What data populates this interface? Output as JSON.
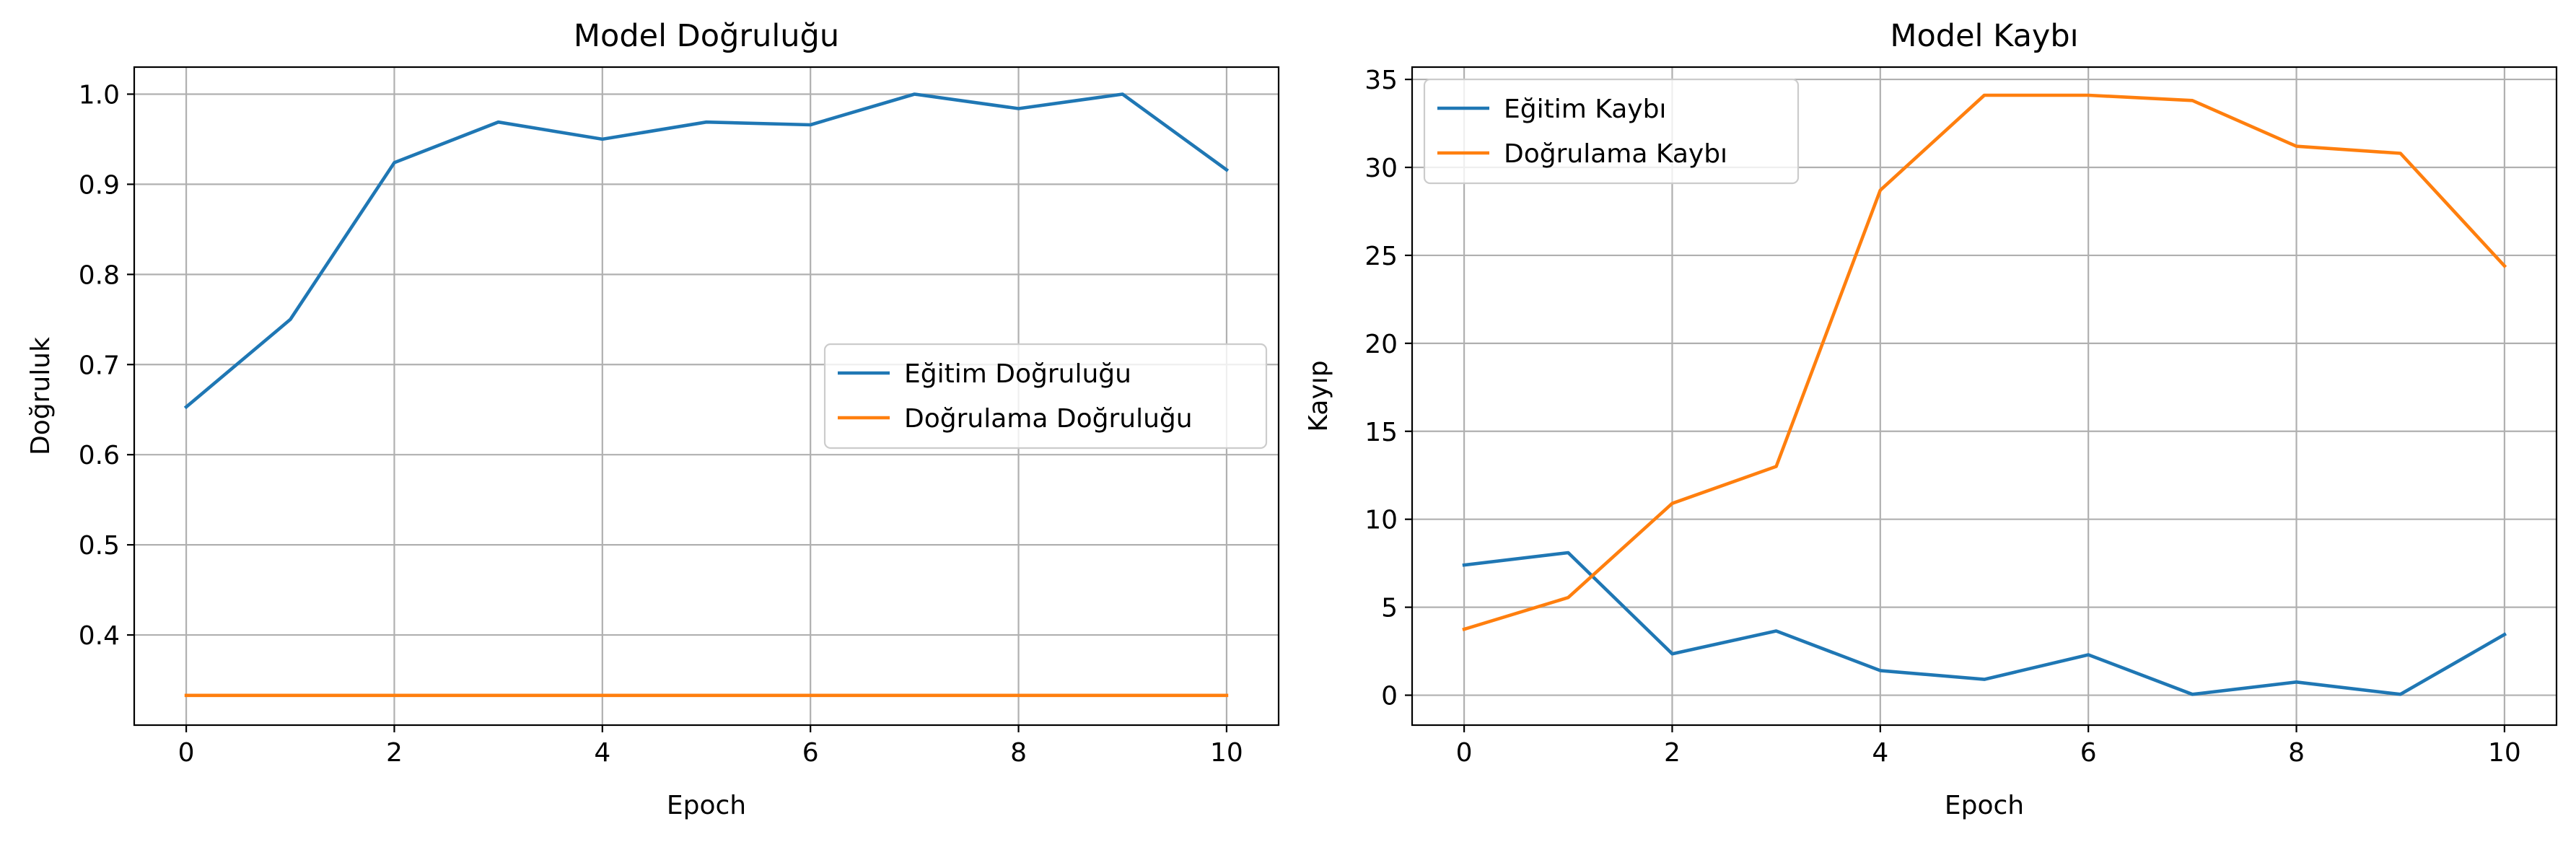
{
  "chart_data": [
    {
      "type": "line",
      "title": "Model Doğruluğu",
      "xlabel": "Epoch",
      "ylabel": "Doğruluk",
      "x": [
        0,
        1,
        2,
        3,
        4,
        5,
        6,
        7,
        8,
        9,
        10
      ],
      "xlim": [
        -0.5,
        10.5
      ],
      "ylim": [
        0.3,
        1.03
      ],
      "xticks": [
        0,
        2,
        4,
        6,
        8,
        10
      ],
      "yticks": [
        0.4,
        0.5,
        0.6,
        0.7,
        0.8,
        0.9,
        1.0
      ],
      "ytick_labels": [
        "0.4",
        "0.5",
        "0.6",
        "0.7",
        "0.8",
        "0.9",
        "1.0"
      ],
      "grid": true,
      "legend_position": "center-right",
      "series": [
        {
          "name": "Eğitim Doğruluğu",
          "color": "#1f77b4",
          "values": [
            0.653,
            0.75,
            0.924,
            0.969,
            0.95,
            0.969,
            0.966,
            1.0,
            0.984,
            1.0,
            0.916
          ]
        },
        {
          "name": "Doğrulama Doğruluğu",
          "color": "#ff7f0e",
          "values": [
            0.333,
            0.333,
            0.333,
            0.333,
            0.333,
            0.333,
            0.333,
            0.333,
            0.333,
            0.333,
            0.333
          ]
        }
      ]
    },
    {
      "type": "line",
      "title": "Model Kaybı",
      "xlabel": "Epoch",
      "ylabel": "Kayıp",
      "x": [
        0,
        1,
        2,
        3,
        4,
        5,
        6,
        7,
        8,
        9,
        10
      ],
      "xlim": [
        -0.5,
        10.5
      ],
      "ylim": [
        -1.7,
        35.7
      ],
      "xticks": [
        0,
        2,
        4,
        6,
        8,
        10
      ],
      "yticks": [
        0,
        5,
        10,
        15,
        20,
        25,
        30,
        35
      ],
      "ytick_labels": [
        "0",
        "5",
        "10",
        "15",
        "20",
        "25",
        "30",
        "35"
      ],
      "grid": true,
      "legend_position": "top-left",
      "series": [
        {
          "name": "Eğitim Kaybı",
          "color": "#1f77b4",
          "values": [
            7.4,
            8.1,
            2.35,
            3.65,
            1.4,
            0.9,
            2.3,
            0.05,
            0.75,
            0.05,
            3.45
          ]
        },
        {
          "name": "Doğrulama Kaybı",
          "color": "#ff7f0e",
          "values": [
            3.75,
            5.55,
            10.9,
            13.0,
            28.7,
            34.1,
            34.1,
            33.8,
            31.2,
            30.8,
            24.4
          ]
        }
      ]
    }
  ]
}
